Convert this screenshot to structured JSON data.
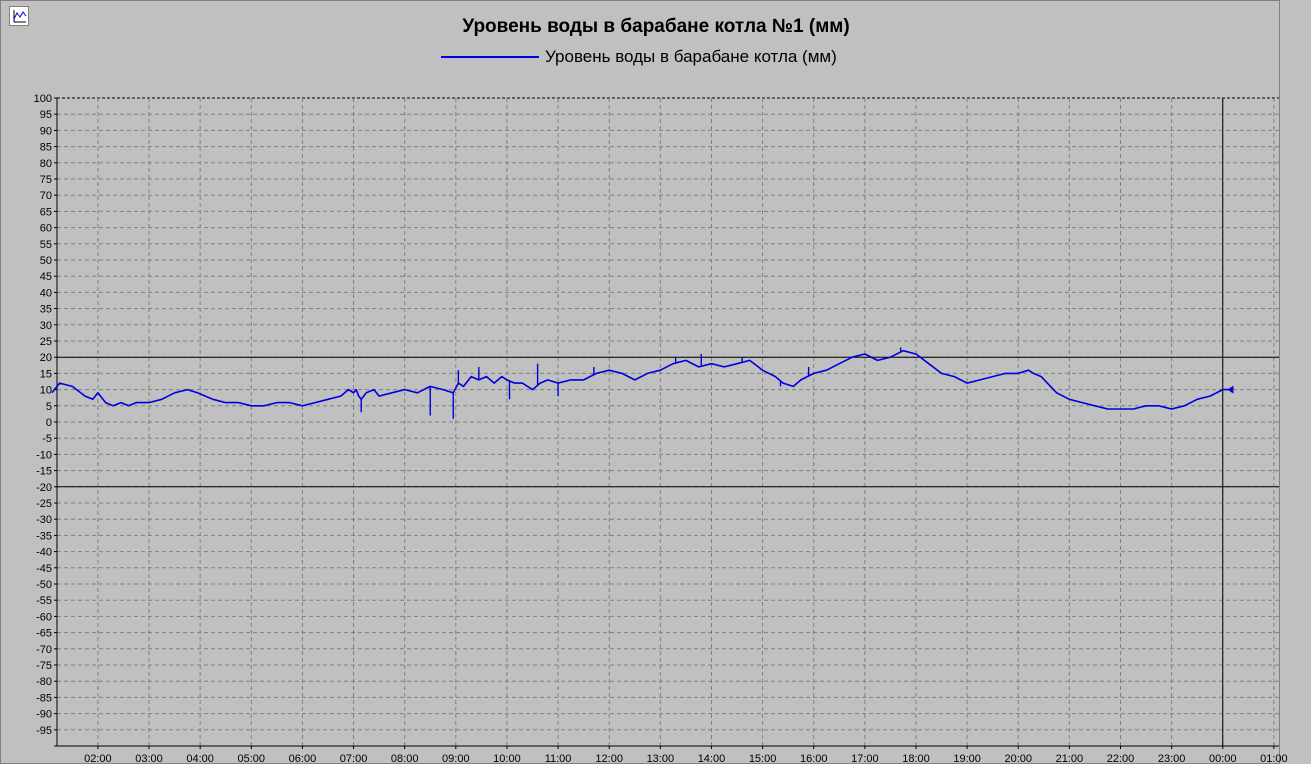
{
  "chart_data": {
    "type": "line",
    "title": "Уровень воды в барабане котла №1 (мм)",
    "series": [
      {
        "name": "Уровень воды в барабане котла (мм)",
        "color": "#0000dd",
        "x": [
          1.1,
          1.25,
          1.5,
          1.75,
          1.9,
          2.0,
          2.15,
          2.3,
          2.45,
          2.6,
          2.75,
          3.0,
          3.25,
          3.5,
          3.75,
          3.95,
          4.1,
          4.25,
          4.5,
          4.75,
          5.0,
          5.25,
          5.5,
          5.75,
          6.0,
          6.25,
          6.5,
          6.75,
          6.9,
          7.0,
          7.05,
          7.1,
          7.15,
          7.25,
          7.4,
          7.5,
          7.75,
          8.0,
          8.25,
          8.5,
          8.75,
          8.95,
          9.05,
          9.15,
          9.3,
          9.45,
          9.6,
          9.75,
          9.9,
          10.0,
          10.15,
          10.3,
          10.5,
          10.65,
          10.8,
          11.0,
          11.25,
          11.5,
          11.75,
          12.0,
          12.25,
          12.5,
          12.75,
          13.0,
          13.25,
          13.5,
          13.75,
          14.0,
          14.25,
          14.5,
          14.75,
          15.0,
          15.25,
          15.4,
          15.6,
          15.75,
          16.0,
          16.25,
          16.5,
          16.75,
          17.0,
          17.25,
          17.5,
          17.75,
          18.0,
          18.25,
          18.5,
          18.75,
          19.0,
          19.25,
          19.5,
          19.75,
          20.0,
          20.2,
          20.3,
          20.45,
          20.75,
          21.0,
          21.25,
          21.5,
          21.75,
          22.0,
          22.25,
          22.5,
          22.75,
          23.0,
          23.25,
          23.5,
          23.75,
          24.0,
          24.15
        ],
        "values": [
          9,
          12,
          11,
          8,
          7,
          9,
          6,
          5,
          6,
          5,
          6,
          6,
          7,
          9,
          10,
          9,
          8,
          7,
          6,
          6,
          5,
          5,
          6,
          6,
          5,
          6,
          7,
          8,
          10,
          9,
          10,
          8,
          7,
          9,
          10,
          8,
          9,
          10,
          9,
          11,
          10,
          9,
          12,
          11,
          14,
          13,
          14,
          12,
          14,
          13,
          12,
          12,
          10,
          12,
          13,
          12,
          13,
          13,
          15,
          16,
          15,
          13,
          15,
          16,
          18,
          19,
          17,
          18,
          17,
          18,
          19,
          16,
          14,
          12,
          11,
          13,
          15,
          16,
          18,
          20,
          21,
          19,
          20,
          22,
          21,
          18,
          15,
          14,
          12,
          13,
          14,
          15,
          15,
          16,
          15,
          14,
          9,
          7,
          6,
          5,
          4,
          4,
          4,
          5,
          5,
          4,
          5,
          7,
          8,
          10,
          10
        ],
        "spikes": [
          [
            7.15,
            3
          ],
          [
            8.5,
            2
          ],
          [
            8.95,
            1
          ],
          [
            9.05,
            16
          ],
          [
            9.45,
            17
          ],
          [
            10.05,
            7
          ],
          [
            10.6,
            18
          ],
          [
            11.0,
            8
          ],
          [
            11.7,
            17
          ],
          [
            13.3,
            20
          ],
          [
            13.8,
            21
          ],
          [
            14.6,
            20
          ],
          [
            15.35,
            11
          ],
          [
            15.9,
            17
          ],
          [
            17.7,
            23
          ]
        ]
      }
    ],
    "x_tick_labels": [
      "02:00",
      "03:00",
      "04:00",
      "05:00",
      "06:00",
      "07:00",
      "08:00",
      "09:00",
      "10:00",
      "11:00",
      "12:00",
      "13:00",
      "14:00",
      "15:00",
      "16:00",
      "17:00",
      "18:00",
      "19:00",
      "20:00",
      "21:00",
      "22:00",
      "23:00",
      "00:00",
      "01:00"
    ],
    "xlim": [
      1.2,
      25.1
    ],
    "ylim": [
      -100,
      100
    ],
    "ytick_step": 5,
    "y_tick_labels_from": -95,
    "limit_lines": [
      20,
      -20
    ],
    "cursor_x": 24.0,
    "grid": true,
    "legend_position": "top-center"
  }
}
